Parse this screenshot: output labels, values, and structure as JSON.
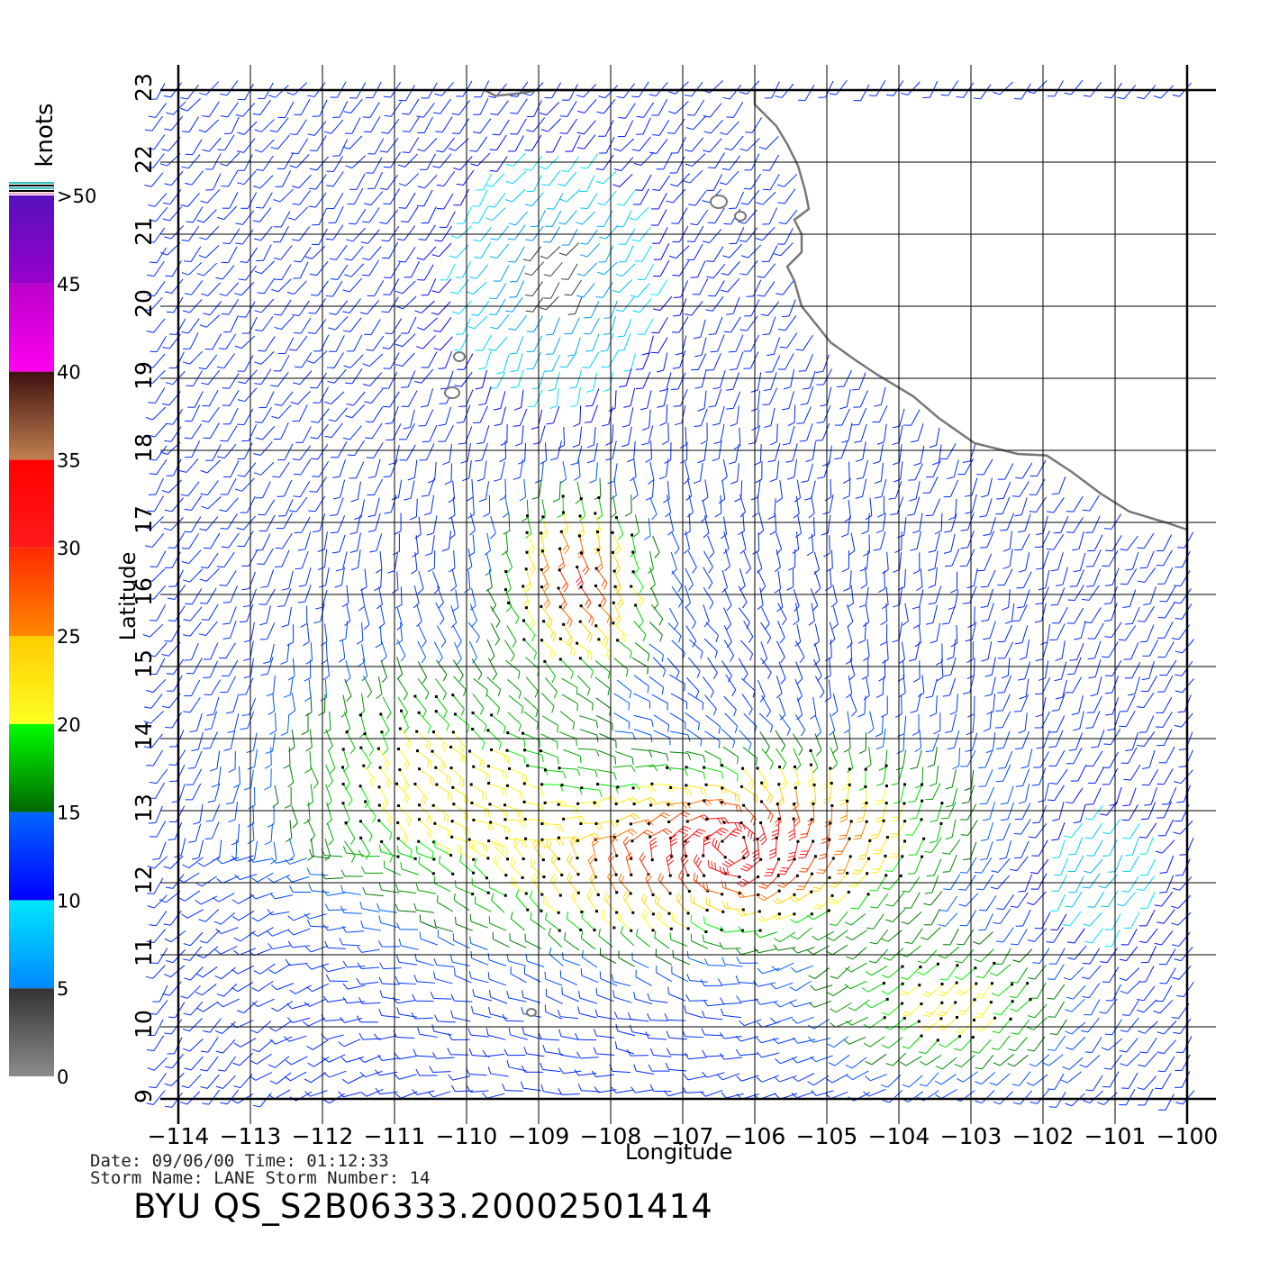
{
  "map": {
    "lon_range": [
      -114,
      -100
    ],
    "lat_range": [
      9,
      23
    ],
    "lon_ticks": [
      "−114",
      "−113",
      "−112",
      "−111",
      "−110",
      "−109",
      "−108",
      "−107",
      "−106",
      "−105",
      "−104",
      "−103",
      "−102",
      "−101",
      "−100"
    ],
    "lat_ticks": [
      "9",
      "10",
      "11",
      "12",
      "13",
      "14",
      "15",
      "16",
      "17",
      "18",
      "19",
      "20",
      "21",
      "22",
      "23"
    ],
    "x_label": "Longitude",
    "y_label": "Latitude",
    "storm_center": {
      "lon": -106.3,
      "lat": 12.5
    },
    "land_color": "#ffffff",
    "coast_color": "#777777",
    "grid_color": "#000000"
  },
  "legend": {
    "unit": "knots",
    "labels": [
      "0",
      "5",
      "10",
      "15",
      "20",
      "25",
      "30",
      "35",
      "40",
      "45",
      ">50"
    ],
    "bands": [
      {
        "from": 0,
        "to": 5,
        "top": "#333333",
        "bottom": "#8c8c8c"
      },
      {
        "from": 5,
        "to": 10,
        "top": "#00e8ff",
        "bottom": "#0088ff"
      },
      {
        "from": 10,
        "to": 15,
        "top": "#0066ff",
        "bottom": "#0000ff"
      },
      {
        "from": 15,
        "to": 20,
        "top": "#00ff00",
        "bottom": "#006600"
      },
      {
        "from": 20,
        "to": 25,
        "top": "#ffcc00",
        "bottom": "#ffff22"
      },
      {
        "from": 25,
        "to": 30,
        "top": "#ff2a00",
        "bottom": "#ff8800"
      },
      {
        "from": 30,
        "to": 35,
        "top": "#ff0000",
        "bottom": "#ff1a1a"
      },
      {
        "from": 35,
        "to": 40,
        "top": "#401010",
        "bottom": "#c08050"
      },
      {
        "from": 40,
        "to": 45,
        "top": "#bb00cc",
        "bottom": "#ff00ee"
      },
      {
        "from": 45,
        "to": 50,
        "top": "#5511bb",
        "bottom": "#9900cc"
      }
    ]
  },
  "footer": {
    "date_line": "Date: 09/06/00   Time: 01:12:33",
    "storm_line": "Storm  Name: LANE    Storm  Number: 14",
    "title": "BYU  QS_S2B06333.20002501414"
  }
}
